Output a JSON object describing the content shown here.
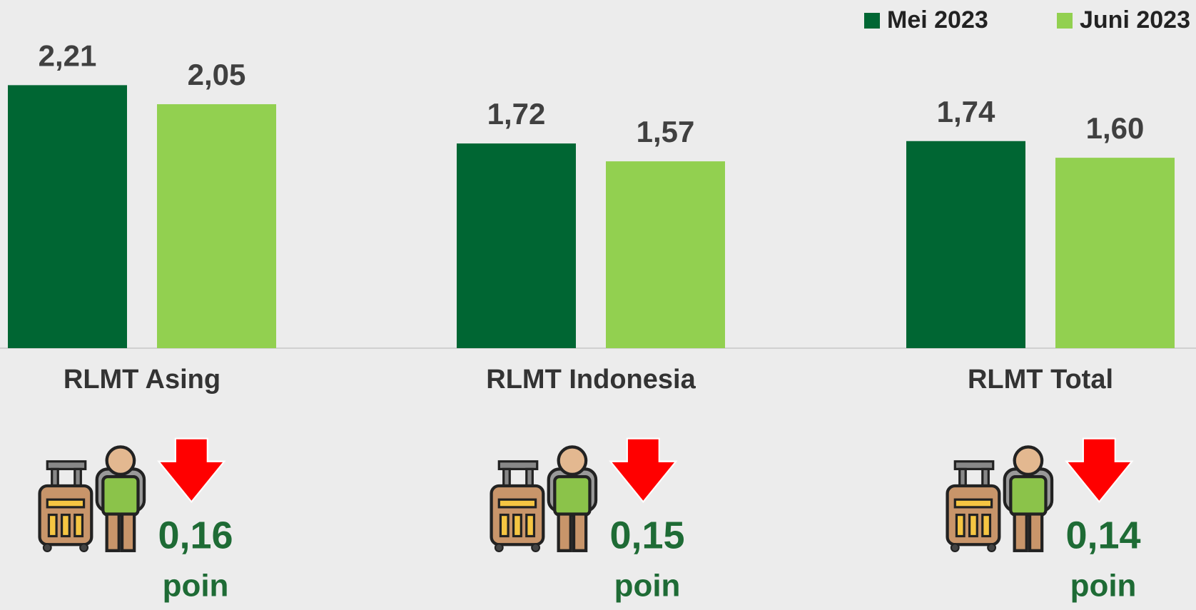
{
  "chart_data": {
    "type": "bar",
    "categories": [
      "RLMT Asing",
      "RLMT Indonesia",
      "RLMT Total"
    ],
    "series": [
      {
        "name": "Mei 2023",
        "color": "#006633",
        "values": [
          2.21,
          1.72,
          1.74
        ],
        "value_labels": [
          "2,21",
          "1,72",
          "1,74"
        ]
      },
      {
        "name": "Juni 2023",
        "color": "#92d050",
        "values": [
          2.05,
          1.57,
          1.6
        ],
        "value_labels": [
          "2,05",
          "1,57",
          "1,60"
        ]
      }
    ],
    "annotations": [
      {
        "text": "0,16",
        "unit": "poin"
      },
      {
        "text": "0,15",
        "unit": "poin"
      },
      {
        "text": "0,14",
        "unit": "poin"
      }
    ]
  }
}
